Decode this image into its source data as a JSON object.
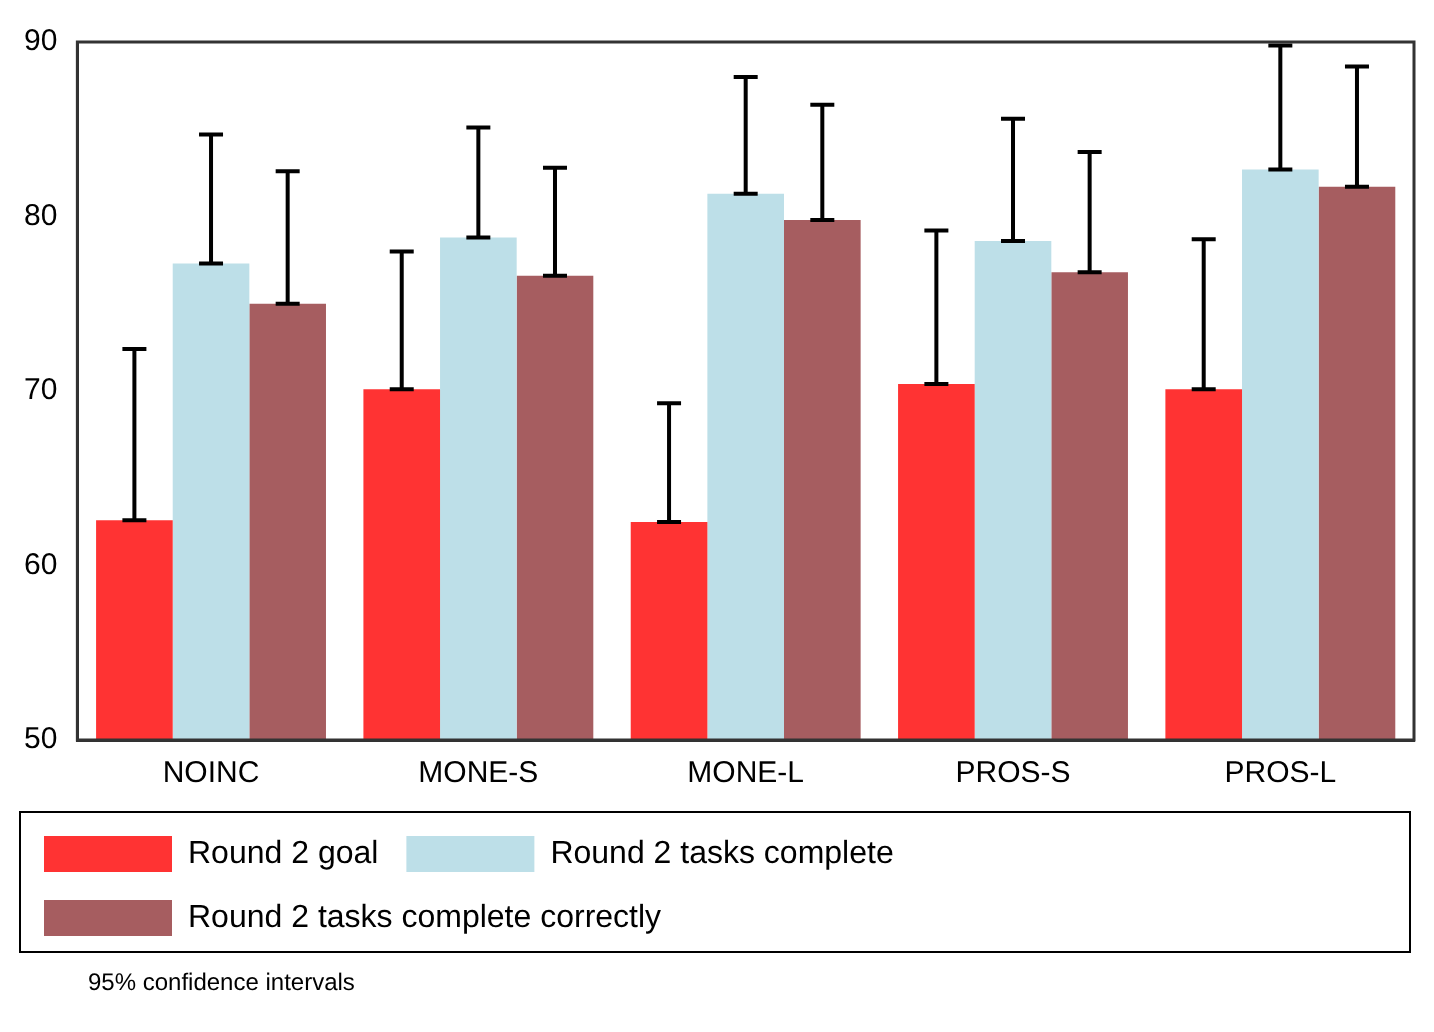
{
  "chart_data": {
    "type": "bar",
    "categories": [
      "NOINC",
      "MONE-S",
      "MONE-L",
      "PROS-S",
      "PROS-L"
    ],
    "series": [
      {
        "name": "Round 2 goal",
        "color": "#ff3333",
        "values": [
          62.6,
          70.1,
          62.5,
          70.4,
          70.1
        ],
        "errors": [
          [
            62.6,
            72.4
          ],
          [
            70.1,
            78.0
          ],
          [
            62.5,
            69.3
          ],
          [
            70.4,
            79.2
          ],
          [
            70.1,
            78.7
          ]
        ]
      },
      {
        "name": "Round 2 tasks complete",
        "color": "#bddfe8",
        "values": [
          77.3,
          78.8,
          81.3,
          78.6,
          82.7
        ],
        "errors": [
          [
            77.3,
            84.7
          ],
          [
            78.8,
            85.1
          ],
          [
            81.3,
            88.0
          ],
          [
            78.6,
            85.6
          ],
          [
            82.7,
            89.8
          ]
        ]
      },
      {
        "name": "Round 2 tasks complete correctly",
        "color": "#a65d60",
        "values": [
          75.0,
          76.6,
          79.8,
          76.8,
          81.7
        ],
        "errors": [
          [
            75.0,
            82.6
          ],
          [
            76.6,
            82.8
          ],
          [
            79.8,
            86.4
          ],
          [
            76.8,
            83.7
          ],
          [
            81.7,
            88.6
          ]
        ]
      }
    ],
    "ylim": [
      50,
      90
    ],
    "yticks": [
      50,
      60,
      70,
      80,
      90
    ],
    "grid": false,
    "legend": "bottom",
    "annotations": [
      "95% confidence intervals"
    ]
  }
}
